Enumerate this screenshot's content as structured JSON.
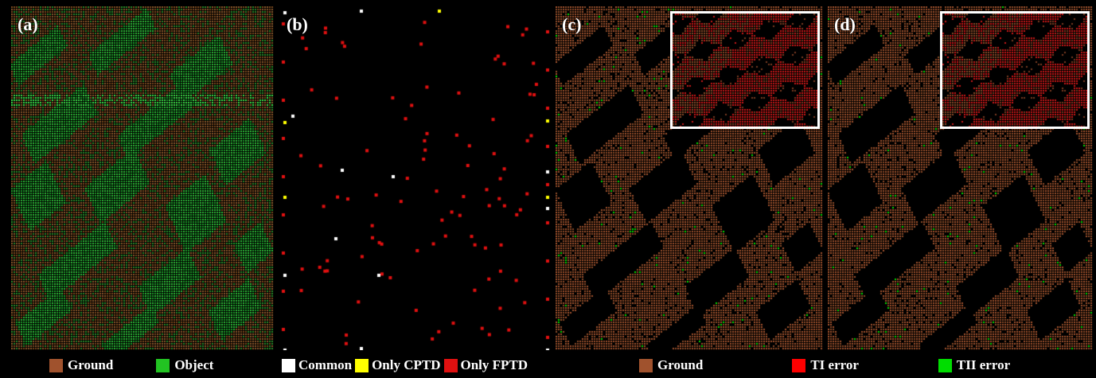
{
  "panels": {
    "a": {
      "label": "(a)"
    },
    "b": {
      "label": "(b)"
    },
    "c": {
      "label": "(c)"
    },
    "d": {
      "label": "(d)"
    }
  },
  "colors": {
    "ground": "#a0522d",
    "object": "#22c322",
    "common": "#ffffff",
    "only_cptd": "#ffff00",
    "only_fptd": "#e01010",
    "ti_error": "#ff0000",
    "tii_error": "#00dd00"
  },
  "legend": {
    "ground": "Ground",
    "object": "Object",
    "common": "Common",
    "only_cptd": "Only CPTD",
    "only_fptd": "Only FPTD",
    "ground2": "Ground",
    "ti_error": "TI error",
    "tii_error": "TII error"
  }
}
